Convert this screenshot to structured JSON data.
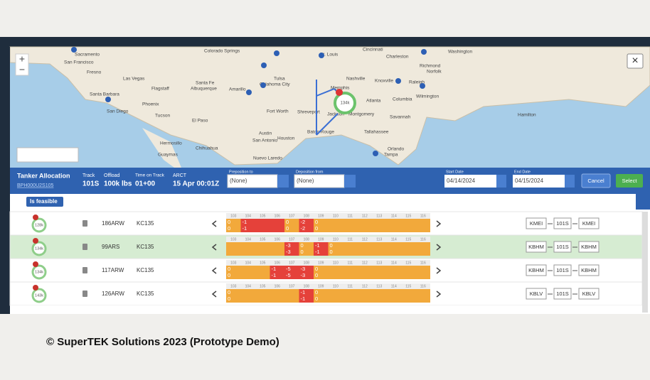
{
  "map": {
    "zoom_in": "+",
    "zoom_out": "−",
    "close": "×",
    "cluster_label": "134k",
    "cities": [
      "Sacramento",
      "San Francisco",
      "Fresno",
      "Las Vegas",
      "Colorado Springs",
      "Santa Barbara",
      "Flagstaff",
      "Santa Fe",
      "Albuquerque",
      "Amarillo",
      "Oklahoma City",
      "Tulsa",
      "St. Louis",
      "Cincinnati",
      "Charleston",
      "Richmond",
      "Norfolk",
      "Washington",
      "Nashville",
      "Knoxville",
      "Raleigh",
      "Wilmington",
      "Memphis",
      "Atlanta",
      "Columbia",
      "San Diego",
      "Phoenix",
      "Tucson",
      "El Paso",
      "Fort Worth",
      "Shreveport",
      "Jackson",
      "Montgomery",
      "Savannah",
      "Hamilton",
      "Austin",
      "Houston",
      "Baton Rouge",
      "Tallahassee",
      "San Antonio",
      "Hermosillo",
      "Chihuahua",
      "Orlando",
      "Tampa",
      "Guaymas",
      "Nuevo Laredo"
    ]
  },
  "header": {
    "title": "Tanker Allocation",
    "id": "BPH000U2S105",
    "track_label": "Track",
    "track": "101S",
    "offload_label": "Offload",
    "offload": "100k lbs",
    "tot_label": "Time on Track",
    "tot": "01+00",
    "arct_label": "ARCT",
    "arct": "15 Apr 00:01Z",
    "prepos_label": "Preposition to",
    "prepos": "(None)",
    "depos_label": "Deposition from",
    "depos": "(None)",
    "start_label": "Start Date",
    "start": "04/14/2024",
    "end_label": "End Date",
    "end": "04/15/2024",
    "cancel": "Cancel",
    "select": "Select"
  },
  "filter": {
    "chip": "Is feasible"
  },
  "columns": [
    "103",
    "104",
    "105",
    "106",
    "107",
    "108",
    "109",
    "110",
    "111",
    "112",
    "113",
    "114",
    "115",
    "116"
  ],
  "rows": [
    {
      "badge": "128k",
      "tail": "186ARW",
      "type": "KC135",
      "top": [
        "0",
        "-1",
        null,
        null,
        "0",
        "-2",
        "0",
        null,
        null,
        null,
        null,
        null,
        null,
        null
      ],
      "bottom": [
        "0",
        "-1",
        null,
        null,
        "0",
        "-2",
        "0",
        null,
        null,
        null,
        null,
        null,
        null,
        null
      ],
      "colors": [
        "#f2a93b",
        "#e5413a",
        "#e5413a",
        "#e5413a",
        "#f2a93b",
        "#e5413a",
        "#f2a93b",
        "#f2a93b",
        "#f2a93b",
        "#f2a93b",
        "#f2a93b",
        "#f2a93b",
        "#f2a93b",
        "#f2a93b"
      ],
      "route": [
        "KMEI",
        "101S",
        "KMEI"
      ],
      "highlight": false
    },
    {
      "badge": "134k",
      "tail": "99ARS",
      "type": "KC135",
      "top": [
        null,
        null,
        null,
        null,
        "-3",
        "0",
        "-1",
        "0",
        null,
        null,
        null,
        null,
        null,
        null
      ],
      "bottom": [
        null,
        null,
        null,
        null,
        "-3",
        "0",
        "-1",
        "0",
        null,
        null,
        null,
        null,
        null,
        null
      ],
      "colors": [
        "#f2a93b",
        "#f2a93b",
        "#f2a93b",
        "#f2a93b",
        "#e5413a",
        "#f2a93b",
        "#e5413a",
        "#f2a93b",
        "#f2a93b",
        "#f2a93b",
        "#f2a93b",
        "#f2a93b",
        "#f2a93b",
        "#f2a93b"
      ],
      "route": [
        "KBHM",
        "101S",
        "KBHM"
      ],
      "highlight": true
    },
    {
      "badge": "134k",
      "tail": "117ARW",
      "type": "KC135",
      "top": [
        "0",
        null,
        null,
        "-1",
        "-5",
        "-3",
        "0",
        null,
        null,
        null,
        null,
        null,
        null,
        null
      ],
      "bottom": [
        "0",
        null,
        null,
        "-1",
        "-5",
        "-3",
        "0",
        null,
        null,
        null,
        null,
        null,
        null,
        null
      ],
      "colors": [
        "#f2a93b",
        "#f2a93b",
        "#f2a93b",
        "#e5413a",
        "#e5413a",
        "#e5413a",
        "#f2a93b",
        "#f2a93b",
        "#f2a93b",
        "#f2a93b",
        "#f2a93b",
        "#f2a93b",
        "#f2a93b",
        "#f2a93b"
      ],
      "route": [
        "KBHM",
        "101S",
        "KBHM"
      ],
      "highlight": false
    },
    {
      "badge": "143k",
      "tail": "126ARW",
      "type": "KC135",
      "top": [
        "0",
        null,
        null,
        null,
        null,
        "-1",
        "0",
        null,
        null,
        null,
        null,
        null,
        null,
        null
      ],
      "bottom": [
        "0",
        null,
        null,
        null,
        null,
        "-1",
        "0",
        null,
        null,
        null,
        null,
        null,
        null,
        null
      ],
      "colors": [
        "#f2a93b",
        "#f2a93b",
        "#f2a93b",
        "#f2a93b",
        "#f2a93b",
        "#e5413a",
        "#f2a93b",
        "#f2a93b",
        "#f2a93b",
        "#f2a93b",
        "#f2a93b",
        "#f2a93b",
        "#f2a93b",
        "#f2a93b"
      ],
      "route": [
        "KBLV",
        "101S",
        "KBLV"
      ],
      "highlight": false
    }
  ],
  "footer": "© SuperTEK Solutions 2023 (Prototype Demo)"
}
